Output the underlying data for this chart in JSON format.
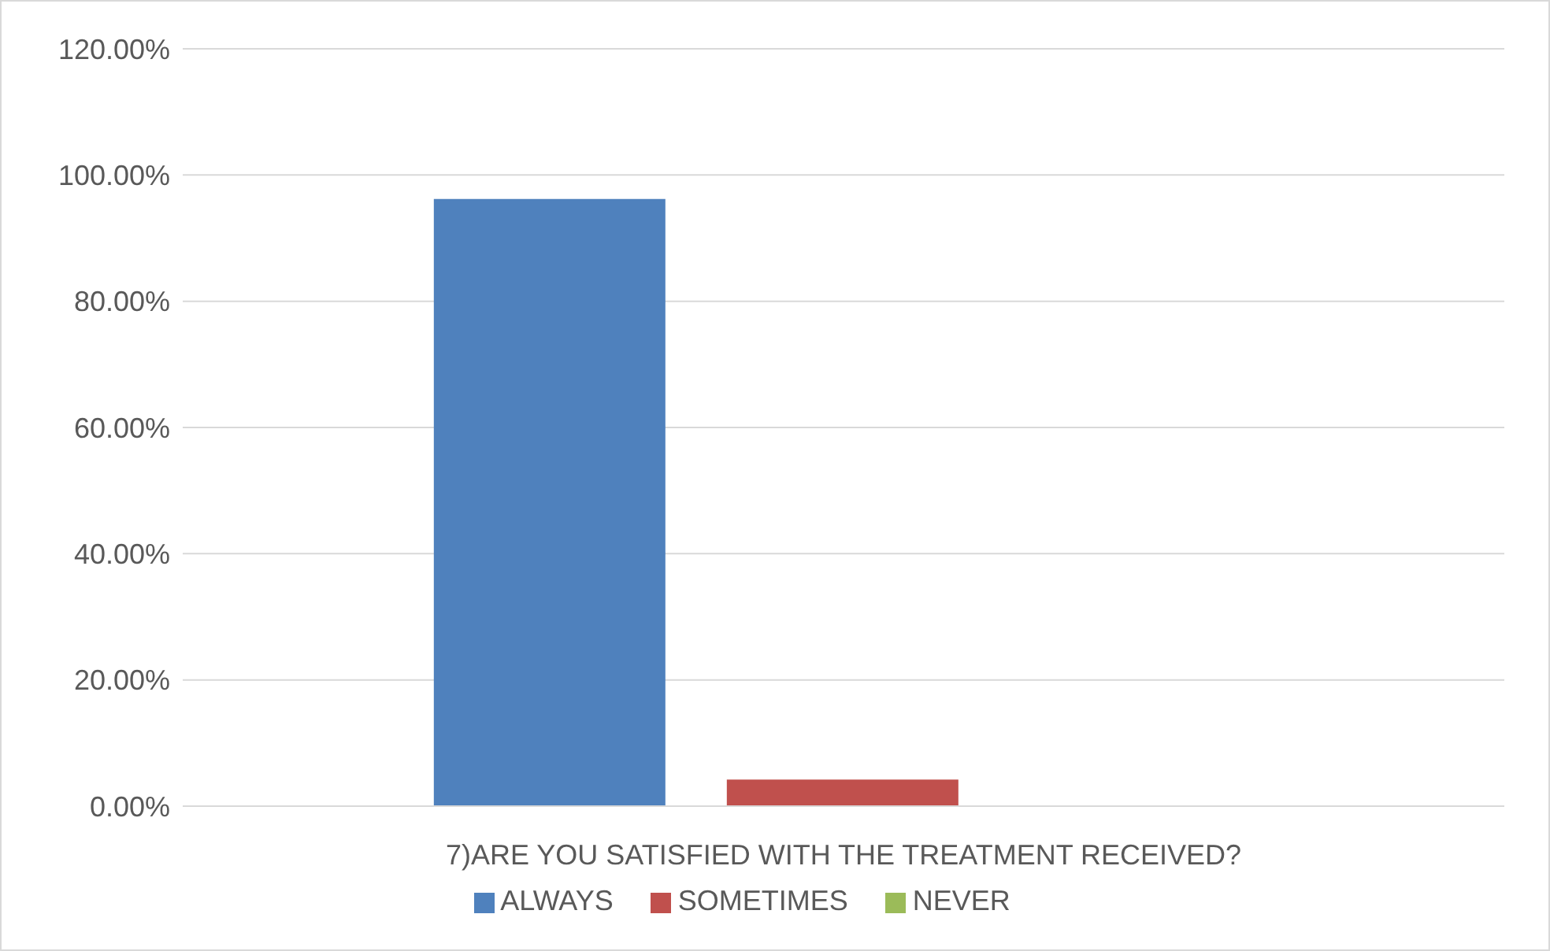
{
  "chart_data": {
    "type": "bar",
    "categories": [
      "7)ARE YOU SATISFIED WITH THE TREATMENT RECEIVED?"
    ],
    "series": [
      {
        "name": "ALWAYS",
        "color": "#4f81bd",
        "values": [
          96.2
        ]
      },
      {
        "name": "SOMETIMES",
        "color": "#c0504d",
        "values": [
          4.2
        ]
      },
      {
        "name": "NEVER",
        "color": "#9bbb59",
        "values": [
          0
        ]
      }
    ],
    "ylim": [
      0,
      120
    ],
    "yticks": [
      {
        "value": 0,
        "label": "0.00%"
      },
      {
        "value": 20,
        "label": "20.00%"
      },
      {
        "value": 40,
        "label": "40.00%"
      },
      {
        "value": 60,
        "label": "60.00%"
      },
      {
        "value": 80,
        "label": "80.00%"
      },
      {
        "value": 100,
        "label": "100.00%"
      },
      {
        "value": 120,
        "label": "120.00%"
      }
    ],
    "grid": "y",
    "legend": "bottom"
  }
}
